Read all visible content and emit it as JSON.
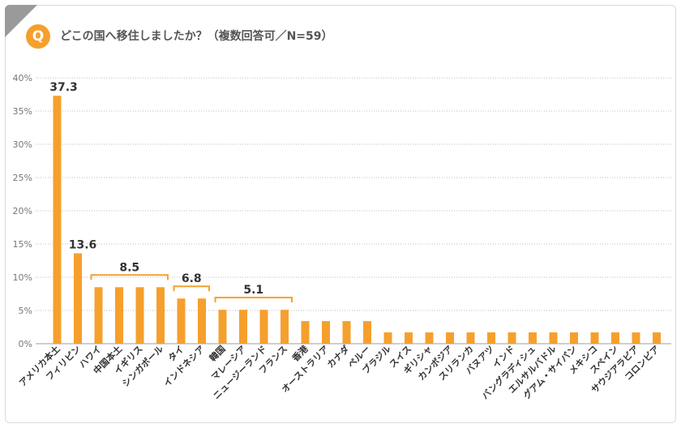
{
  "header": {
    "badge": "Q",
    "question": "どこの国へ移住しましたか？（複数回答可／N=59）"
  },
  "colors": {
    "bar": "#f5a02d",
    "label": "#f5a02d",
    "grid": "#bdbdbd",
    "axis_text": "#777777"
  },
  "chart_data": {
    "type": "bar",
    "title": "",
    "xlabel": "",
    "ylabel": "",
    "ylim": [
      0,
      40
    ],
    "yticks": [
      "0%",
      "5%",
      "10%",
      "15%",
      "20%",
      "25%",
      "30%",
      "35%",
      "40%"
    ],
    "grid": true,
    "categories": [
      "アメリカ本土",
      "フィリピン",
      "ハワイ",
      "中国本土",
      "イギリス",
      "シンガポール",
      "タイ",
      "インドネシア",
      "韓国",
      "マレーシア",
      "ニュージーランド",
      "フランス",
      "香港",
      "オーストラリア",
      "カナダ",
      "ペルー",
      "ブラジル",
      "スイス",
      "ギリシャ",
      "カンボジア",
      "スリランカ",
      "バヌアツ",
      "インド",
      "バングラディシュ",
      "エルサルバドル",
      "グアム・サイパン",
      "メキシコ",
      "スペイン",
      "サウジアラビア",
      "コロンビア"
    ],
    "values": [
      37.3,
      13.6,
      8.5,
      8.5,
      8.5,
      8.5,
      6.8,
      6.8,
      5.1,
      5.1,
      5.1,
      5.1,
      3.4,
      3.4,
      3.4,
      3.4,
      1.7,
      1.7,
      1.7,
      1.7,
      1.7,
      1.7,
      1.7,
      1.7,
      1.7,
      1.7,
      1.7,
      1.7,
      1.7,
      1.7
    ],
    "annotations": [
      {
        "label": "37.3",
        "from": 0,
        "to": 0,
        "value": 37.3,
        "bracket": false
      },
      {
        "label": "13.6",
        "from": 1,
        "to": 1,
        "value": 13.6,
        "bracket": false
      },
      {
        "label": "8.5",
        "from": 2,
        "to": 5,
        "value": 8.5,
        "bracket": true
      },
      {
        "label": "6.8",
        "from": 6,
        "to": 7,
        "value": 6.8,
        "bracket": true
      },
      {
        "label": "5.1",
        "from": 8,
        "to": 11,
        "value": 5.1,
        "bracket": true
      }
    ]
  }
}
